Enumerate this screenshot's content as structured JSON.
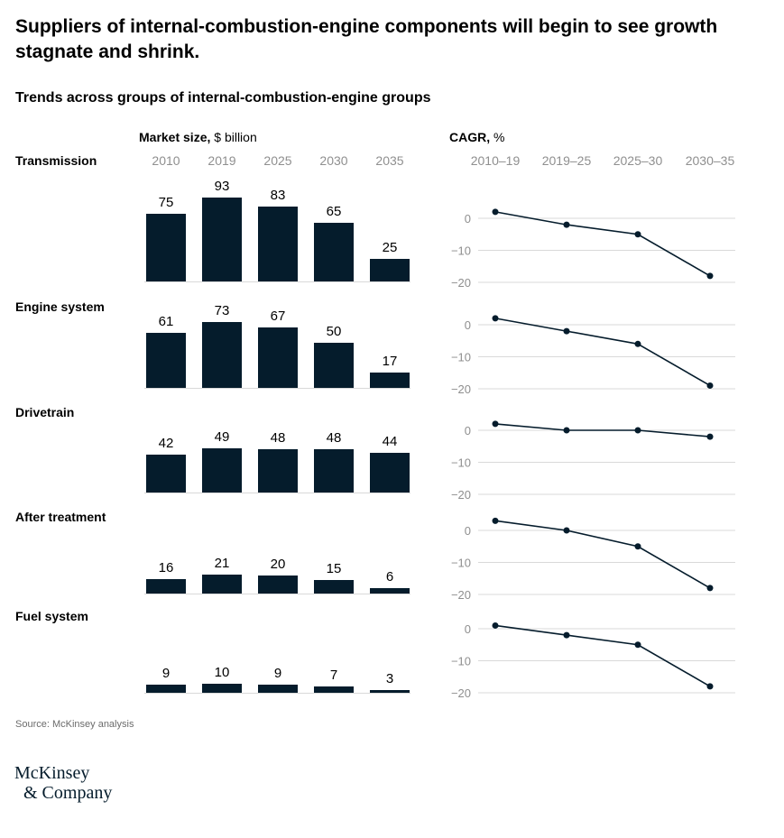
{
  "title": "Suppliers of internal-combustion-engine components will begin to see growth stagnate and shrink.",
  "subtitle": "Trends across groups of internal-combustion-engine groups",
  "market_label": {
    "bold": "Market size,",
    "rest": " $ billion"
  },
  "cagr_label": {
    "bold": "CAGR,",
    "rest": " %"
  },
  "source": "Source: McKinsey analysis",
  "logo": {
    "line1": "McKinsey",
    "line2": "& Company"
  },
  "colors": {
    "bar": "#051c2c",
    "line": "#051c2c",
    "tick": "#8f8f8f",
    "grid": "#d9d9d9"
  },
  "chart_data": [
    {
      "type": "bar",
      "title": "Market size, $ billion",
      "categories": [
        "2010",
        "2019",
        "2025",
        "2030",
        "2035"
      ],
      "series": [
        {
          "name": "Transmission",
          "values": [
            75,
            93,
            83,
            65,
            25
          ]
        },
        {
          "name": "Engine system",
          "values": [
            61,
            73,
            67,
            50,
            17
          ]
        },
        {
          "name": "Drivetrain",
          "values": [
            42,
            49,
            48,
            48,
            44
          ]
        },
        {
          "name": "After treatment",
          "values": [
            16,
            21,
            20,
            15,
            6
          ]
        },
        {
          "name": "Fuel system",
          "values": [
            9,
            10,
            9,
            7,
            3
          ]
        }
      ]
    },
    {
      "type": "line",
      "title": "CAGR, %",
      "categories": [
        "2010–19",
        "2019–25",
        "2025–30",
        "2030–35"
      ],
      "yticks": [
        0,
        -10,
        -20
      ],
      "ylim": [
        -20,
        2
      ],
      "grid": true,
      "series": [
        {
          "name": "Transmission",
          "values": [
            2,
            -2,
            -5,
            -18
          ]
        },
        {
          "name": "Engine system",
          "values": [
            2,
            -2,
            -6,
            -19
          ]
        },
        {
          "name": "Drivetrain",
          "values": [
            2,
            0,
            0,
            -2
          ]
        },
        {
          "name": "After treatment",
          "values": [
            3,
            0,
            -5,
            -18
          ]
        },
        {
          "name": "Fuel system",
          "values": [
            1,
            -2,
            -5,
            -18
          ]
        }
      ]
    }
  ]
}
